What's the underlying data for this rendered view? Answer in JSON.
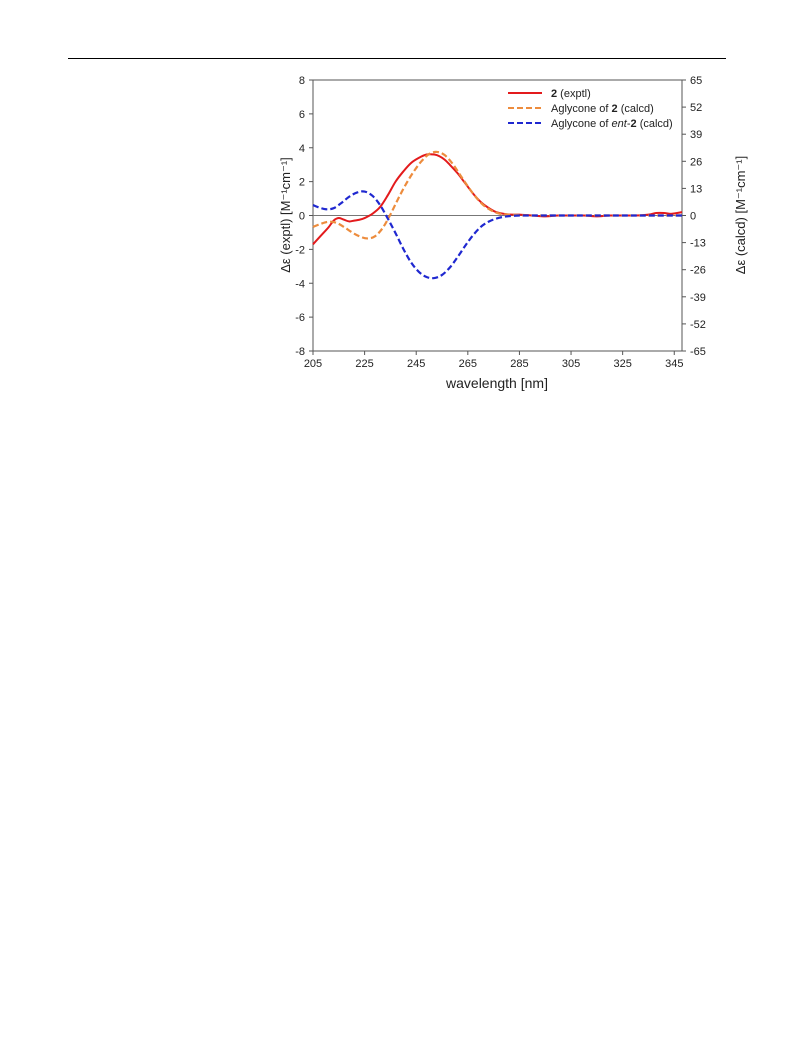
{
  "chart_data": {
    "type": "line",
    "title": "",
    "xlabel": "wavelength [nm]",
    "ylabel_left": "Δε (exptl) [M⁻¹cm⁻¹]",
    "ylabel_right": "Δε (calcd) [M⁻¹cm⁻¹]",
    "xlim": [
      205,
      348
    ],
    "ylim_left": [
      -8,
      8
    ],
    "ylim_right": [
      -65,
      65
    ],
    "xticks": [
      "205",
      "225",
      "245",
      "265",
      "285",
      "305",
      "325",
      "345"
    ],
    "yticks_left": [
      "8",
      "6",
      "4",
      "2",
      "0",
      "-2",
      "-4",
      "-6",
      "-8"
    ],
    "yticks_right": [
      "65",
      "52",
      "39",
      "26",
      "13",
      "0",
      "-13",
      "-26",
      "-39",
      "-52",
      "-65"
    ],
    "grid": false,
    "zero_line": true,
    "legend_position": "top-right",
    "legend": [
      {
        "bold": "2",
        "text": " (exptl)"
      },
      {
        "text": "Aglycone of ",
        "bold": "2",
        "suffix": " (calcd)"
      },
      {
        "text": "Aglycone of ",
        "italic": "ent",
        "mid": "-",
        "bold": "2",
        "suffix": " (calcd)"
      }
    ],
    "series": [
      {
        "axis": "left",
        "color": "#e31a1c",
        "dash": "solid",
        "x": [
          205,
          208,
          211,
          213,
          215,
          217,
          219,
          221,
          223,
          225,
          228,
          231,
          234,
          237,
          240,
          243,
          246,
          249,
          252,
          254,
          256,
          258,
          261,
          264,
          267,
          270,
          273,
          276,
          279,
          282,
          285,
          290,
          295,
          300,
          305,
          310,
          315,
          320,
          325,
          330,
          335,
          338,
          341,
          344,
          348
        ],
        "y": [
          -1.7,
          -1.2,
          -0.7,
          -0.3,
          -0.15,
          -0.25,
          -0.35,
          -0.3,
          -0.25,
          -0.15,
          0.1,
          0.5,
          1.2,
          2.0,
          2.6,
          3.1,
          3.4,
          3.6,
          3.6,
          3.5,
          3.3,
          3.0,
          2.5,
          1.9,
          1.3,
          0.8,
          0.45,
          0.2,
          0.1,
          0.05,
          0.05,
          0.0,
          -0.05,
          0.0,
          0.0,
          0.0,
          -0.05,
          0.0,
          0.0,
          0.0,
          0.05,
          0.15,
          0.15,
          0.1,
          0.2
        ]
      },
      {
        "axis": "right",
        "color": "#ed8c3d",
        "dash": "dashed",
        "x": [
          205,
          208,
          211,
          214,
          217,
          220,
          223,
          226,
          229,
          232,
          235,
          238,
          241,
          244,
          247,
          250,
          253,
          256,
          259,
          262,
          265,
          268,
          271,
          274,
          277,
          280,
          285,
          290,
          300,
          310,
          320,
          330,
          340,
          348
        ],
        "y": [
          -5.5,
          -4.0,
          -3.0,
          -3.5,
          -5.5,
          -8.0,
          -10.0,
          -11.0,
          -10.0,
          -6.0,
          0.5,
          8.0,
          15.0,
          21.0,
          26.0,
          29.5,
          30.5,
          29.0,
          25.0,
          19.5,
          14.0,
          9.0,
          5.0,
          2.5,
          1.0,
          0.5,
          0.2,
          0.0,
          0.0,
          0.0,
          0.0,
          0.0,
          0.0,
          0.0
        ]
      },
      {
        "axis": "right",
        "color": "#1f28d0",
        "dash": "dashed",
        "x": [
          205,
          207,
          210,
          213,
          216,
          219,
          222,
          225,
          228,
          231,
          234,
          237,
          240,
          243,
          246,
          249,
          252,
          255,
          258,
          261,
          264,
          267,
          270,
          273,
          276,
          279,
          282,
          285,
          290,
          300,
          310,
          320,
          330,
          340,
          348
        ],
        "y": [
          5.0,
          4.0,
          3.0,
          3.5,
          6.0,
          9.0,
          11.0,
          11.5,
          9.5,
          5.0,
          -1.5,
          -8.5,
          -16.0,
          -22.5,
          -27.0,
          -29.5,
          -30.0,
          -28.5,
          -25.0,
          -20.0,
          -14.5,
          -9.5,
          -5.5,
          -3.0,
          -1.5,
          -0.6,
          -0.2,
          0.0,
          0.0,
          0.0,
          0.0,
          0.0,
          0.0,
          0.0,
          0.0
        ]
      }
    ]
  }
}
